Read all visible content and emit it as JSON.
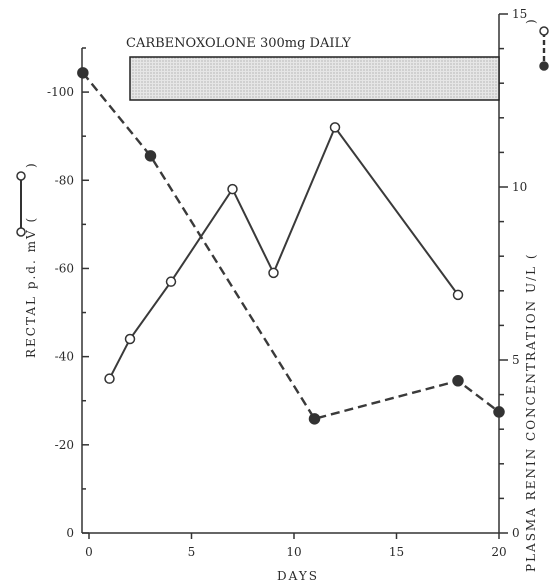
{
  "chart_data": {
    "type": "line",
    "xlabel": "DAYS",
    "ylabel_left": "RECTAL p.d. mV (",
    "ylabel_right": "PLASMA RENIN CONCENTRATION  U/L (",
    "x_range": [
      0,
      20
    ],
    "x_ticks": [
      "0",
      "5",
      "10",
      "15",
      "20"
    ],
    "y_left_range": [
      0,
      -110
    ],
    "y_left_ticks": [
      "0",
      "-20",
      "-40",
      "-60",
      "-80",
      "-100"
    ],
    "y_right_range": [
      0,
      15
    ],
    "y_right_ticks": [
      "0",
      "5",
      "10",
      "15"
    ],
    "treatment": {
      "label": "CARBENOXOLONE 300mg DAILY",
      "start_day": 2,
      "end_day": 20
    },
    "series": [
      {
        "axis": "left",
        "style": "solid-open-circles",
        "points": [
          {
            "x": 1,
            "y": -35
          },
          {
            "x": 2,
            "y": -44
          },
          {
            "x": 4,
            "y": -57
          },
          {
            "x": 7,
            "y": -78
          },
          {
            "x": 9,
            "y": -59
          },
          {
            "x": 12,
            "y": -92
          },
          {
            "x": 18,
            "y": -54
          }
        ]
      },
      {
        "axis": "right",
        "style": "dashed-filled-circles",
        "points": [
          {
            "x": -0.3,
            "y": 13.3
          },
          {
            "x": 3,
            "y": 10.9
          },
          {
            "x": 11,
            "y": 3.3
          },
          {
            "x": 18,
            "y": 4.4
          },
          {
            "x": 20,
            "y": 3.5
          }
        ]
      }
    ]
  }
}
